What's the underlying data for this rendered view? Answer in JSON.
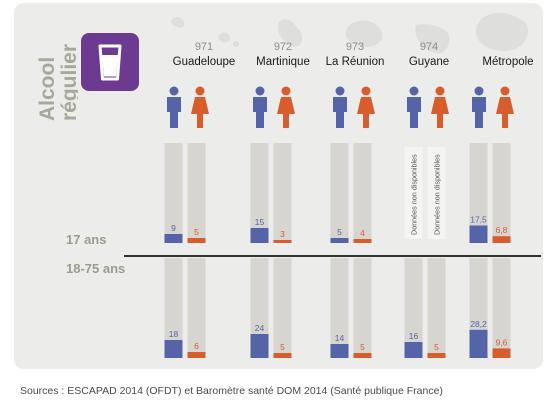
{
  "title_lines": [
    "Alcool",
    "régulier"
  ],
  "icon": "beer-glass-icon",
  "colors": {
    "men": "#5564a6",
    "women": "#d75e2c",
    "bar_bg": "#d6d5d0",
    "title": "#a7a79a",
    "icon_bg": "#6c3b91"
  },
  "regions": [
    {
      "code": "971",
      "name": "Guadeloupe"
    },
    {
      "code": "972",
      "name": "Martinique"
    },
    {
      "code": "973",
      "name": "La Réunion"
    },
    {
      "code": "974",
      "name": "Guyane"
    },
    {
      "code": "",
      "name": "Métropole"
    }
  ],
  "age_labels": {
    "youth": "17 ans",
    "adult": "18-75 ans"
  },
  "unavailable_label": "Données non disponibles",
  "chart_data": {
    "type": "bar",
    "categories": [
      "Guadeloupe",
      "Martinique",
      "La Réunion",
      "Guyane",
      "Métropole"
    ],
    "groups": [
      {
        "name": "17 ans",
        "series": [
          {
            "values": [
              9,
              15,
              5,
              null,
              17.5
            ],
            "labels": [
              "9",
              "15",
              "5",
              "",
              "17,5"
            ]
          },
          {
            "values": [
              5,
              3,
              4,
              null,
              6.8
            ],
            "labels": [
              "5",
              "3",
              "4",
              "",
              "6,8"
            ]
          }
        ]
      },
      {
        "name": "18-75 ans",
        "series": [
          {
            "values": [
              18,
              24,
              14,
              16,
              28.2
            ],
            "labels": [
              "18",
              "24",
              "14",
              "16",
              "28,2"
            ]
          },
          {
            "values": [
              6,
              5,
              5,
              5,
              9.6
            ],
            "labels": [
              "6",
              "5",
              "5",
              "5",
              "9,6"
            ]
          }
        ]
      }
    ],
    "ylim": [
      0,
      100
    ]
  },
  "source": "Sources : ESCAPAD 2014 (OFDT) et Baromètre santé DOM 2014 (Santé publique France)"
}
